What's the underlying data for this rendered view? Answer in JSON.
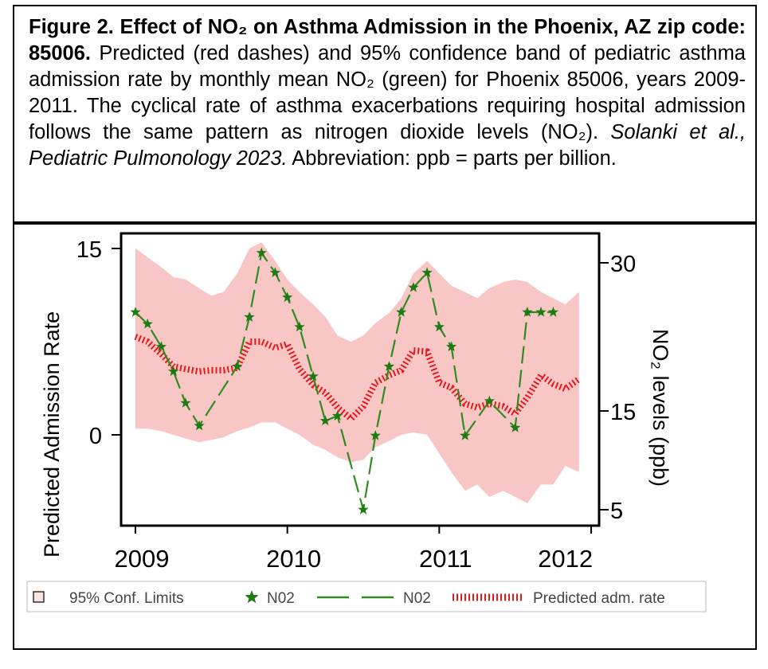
{
  "caption": {
    "title_bold": "Figure 2. Effect of NO₂ on Asthma Admission in the Phoenix, AZ zip code: 85006.",
    "body_1": " Predicted (red dashes) and 95% confidence band of pediatric asthma admission rate by monthly mean NO₂ (green) for Phoenix 85006, years 2009-2011. The cyclical rate of asthma exacerbations requiring hospital admission follows the same pattern as nitrogen dioxide levels (NO₂). ",
    "citation_italic": "Solanki et al., Pediatric Pulmonology 2023.",
    "body_2": " Abbreviation: ppb = parts per billion."
  },
  "chart_data": {
    "type": "line",
    "title": "",
    "xlabel": "",
    "ylabel": "Predicted Admission Rate",
    "y2label": "NO₂ levels (ppb)",
    "x_ticks": [
      "2009",
      "2010",
      "2011",
      "2012"
    ],
    "y_ticks": [
      "0",
      "15"
    ],
    "y2_ticks": [
      "5",
      "15",
      "30"
    ],
    "xlim": [
      2009.0,
      2012.0
    ],
    "ylim": [
      -5,
      16
    ],
    "y2lim": [
      5,
      30
    ],
    "grid": false,
    "legend_position": "bottom",
    "x": [
      2009.0,
      2009.08,
      2009.17,
      2009.25,
      2009.33,
      2009.42,
      2009.5,
      2009.58,
      2009.67,
      2009.75,
      2009.83,
      2009.92,
      2010.0,
      2010.08,
      2010.17,
      2010.25,
      2010.33,
      2010.42,
      2010.5,
      2010.58,
      2010.67,
      2010.75,
      2010.83,
      2010.92,
      2011.0,
      2011.08,
      2011.17,
      2011.25,
      2011.33,
      2011.42,
      2011.5,
      2011.58,
      2011.67,
      2011.75,
      2011.83,
      2011.92
    ],
    "series": [
      {
        "name": "95% Conf. Limits",
        "kind": "band",
        "color": "#f9c6c6",
        "lower": [
          0.5,
          0.5,
          0.3,
          0.0,
          -0.3,
          -0.6,
          -0.4,
          -0.2,
          0.3,
          0.6,
          1.0,
          1.0,
          0.5,
          0.0,
          -0.8,
          -1.2,
          -1.8,
          -2.2,
          -2.0,
          -1.0,
          -0.5,
          0.0,
          0.2,
          0.0,
          -1.5,
          -3.0,
          -4.5,
          -4.0,
          -5.0,
          -4.5,
          -5.0,
          -5.5,
          -4.0,
          -4.0,
          -2.5,
          -3.0
        ],
        "upper": [
          15.0,
          14.3,
          13.5,
          12.7,
          12.5,
          11.8,
          11.2,
          11.5,
          13.0,
          15.0,
          15.5,
          14.0,
          12.5,
          11.5,
          10.5,
          9.5,
          8.0,
          7.5,
          8.0,
          9.0,
          9.8,
          11.0,
          13.0,
          14.0,
          13.0,
          12.0,
          11.5,
          11.0,
          11.8,
          12.3,
          12.5,
          12.3,
          11.5,
          11.0,
          10.5,
          11.5
        ]
      },
      {
        "name": "Predicted adm. rate",
        "kind": "line",
        "color": "#e41a1c",
        "axis": "left",
        "values": [
          7.9,
          7.5,
          6.5,
          5.5,
          5.3,
          5.1,
          5.2,
          5.2,
          5.4,
          7.5,
          7.5,
          7.0,
          7.3,
          5.3,
          4.0,
          3.4,
          2.2,
          1.3,
          2.3,
          4.2,
          4.8,
          5.2,
          6.8,
          6.7,
          4.2,
          3.8,
          2.5,
          2.2,
          2.5,
          2.3,
          1.7,
          3.0,
          4.8,
          4.1,
          3.7,
          4.5
        ]
      },
      {
        "name": "N02",
        "kind": "line+markers",
        "color": "#2e8b1e",
        "marker_color": "#1e7a12",
        "axis": "right",
        "values": [
          25.0,
          23.8,
          21.5,
          19.0,
          15.8,
          13.5,
          null,
          null,
          19.5,
          24.5,
          31.0,
          29.0,
          26.5,
          23.5,
          18.5,
          14.0,
          14.5,
          null,
          5.0,
          12.5,
          19.5,
          25.0,
          27.5,
          29.0,
          23.5,
          21.5,
          12.5,
          null,
          16.0,
          null,
          13.3,
          25.0,
          25.0,
          25.0,
          null,
          null
        ]
      }
    ]
  },
  "legend": {
    "items": [
      {
        "symbol": "square-outline",
        "label": "95% Conf. Limits"
      },
      {
        "symbol": "star",
        "label": "N02"
      },
      {
        "symbol": "dash-line",
        "label": "N02"
      },
      {
        "symbol": "dotted-red",
        "label": "Predicted adm. rate"
      }
    ]
  }
}
